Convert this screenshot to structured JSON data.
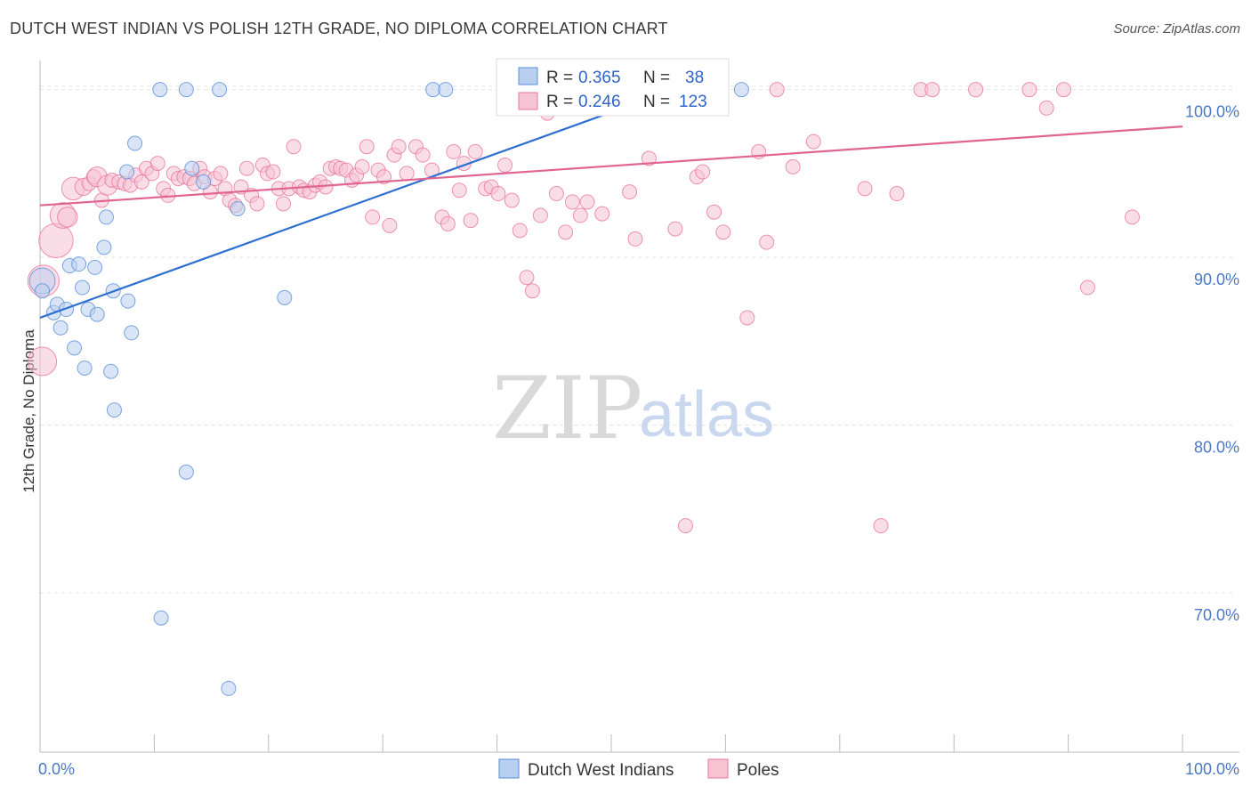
{
  "title": "DUTCH WEST INDIAN VS POLISH 12TH GRADE, NO DIPLOMA CORRELATION CHART",
  "source": "Source: ZipAtlas.com",
  "watermark": {
    "zip": "ZIP",
    "atlas": "atlas"
  },
  "colors": {
    "blue": "#5b8fd8",
    "blue_fill": "#b9cff0",
    "pink": "#e8779c",
    "pink_fill": "#f6c3d3",
    "axis_label": "#4a78c2"
  },
  "chart_data": {
    "type": "scatter",
    "title": "DUTCH WEST INDIAN VS POLISH 12TH GRADE, NO DIPLOMA CORRELATION CHART",
    "xlabel": "",
    "ylabel": "12th Grade, No Diploma",
    "xlim": [
      0,
      100
    ],
    "ylim": [
      60.5,
      102
    ],
    "x_tick_labels": [
      "0.0%",
      "100.0%"
    ],
    "y_ticks": [
      70,
      80,
      90,
      100
    ],
    "y_tick_labels": [
      "70.0%",
      "80.0%",
      "90.0%",
      "100.0%"
    ],
    "grid": true,
    "legend": {
      "placement": "top-center",
      "entries": [
        {
          "r_label": "R =",
          "r_value": "0.365",
          "n_label": "N =",
          "n_value": "38"
        },
        {
          "r_label": "R =",
          "r_value": "0.246",
          "n_label": "N =",
          "n_value": "123"
        }
      ]
    },
    "series": [
      {
        "name": "Dutch West Indians",
        "color": "#5b8fd8",
        "trend": {
          "x": [
            0,
            55.5
          ],
          "y": [
            86.4,
            100.0
          ]
        },
        "points": [
          [
            0.2,
            88.6,
            1.8
          ],
          [
            0.2,
            88.0,
            1.0
          ],
          [
            1.2,
            86.7,
            1.0
          ],
          [
            1.5,
            87.2,
            1.0
          ],
          [
            1.8,
            85.8,
            1.0
          ],
          [
            2.3,
            86.9,
            1.0
          ],
          [
            2.6,
            89.5,
            1.0
          ],
          [
            3.0,
            84.6,
            1.0
          ],
          [
            3.4,
            89.6,
            1.0
          ],
          [
            3.7,
            88.2,
            1.0
          ],
          [
            3.9,
            83.4,
            1.0
          ],
          [
            4.2,
            86.9,
            1.0
          ],
          [
            4.8,
            89.4,
            1.0
          ],
          [
            5.0,
            86.6,
            1.0
          ],
          [
            5.6,
            90.6,
            1.0
          ],
          [
            5.8,
            92.4,
            1.0
          ],
          [
            6.2,
            83.2,
            1.0
          ],
          [
            6.4,
            88.0,
            1.0
          ],
          [
            6.5,
            80.9,
            1.0
          ],
          [
            7.7,
            87.4,
            1.0
          ],
          [
            8.0,
            85.5,
            1.0
          ],
          [
            8.3,
            96.8,
            1.0
          ],
          [
            7.6,
            95.1,
            1.0
          ],
          [
            10.5,
            100.0,
            1.0
          ],
          [
            10.6,
            68.5,
            1.0
          ],
          [
            12.8,
            100.0,
            1.0
          ],
          [
            12.8,
            77.2,
            1.0
          ],
          [
            13.3,
            95.3,
            1.0
          ],
          [
            14.3,
            94.5,
            1.0
          ],
          [
            15.7,
            100.0,
            1.0
          ],
          [
            16.5,
            64.3,
            1.0
          ],
          [
            17.3,
            92.9,
            1.0
          ],
          [
            21.4,
            87.6,
            1.0
          ],
          [
            34.4,
            100.0,
            1.0
          ],
          [
            35.5,
            100.0,
            1.0
          ],
          [
            42.1,
            100.0,
            1.0
          ],
          [
            55.0,
            100.0,
            1.0
          ],
          [
            61.4,
            100.0,
            1.0
          ]
        ]
      },
      {
        "name": "Poles",
        "color": "#e8779c",
        "trend": {
          "x": [
            0,
            100
          ],
          "y": [
            93.1,
            97.8
          ]
        },
        "points": [
          [
            0.2,
            83.8,
            2.0
          ],
          [
            0.3,
            88.6,
            2.2
          ],
          [
            1.4,
            91.0,
            2.4
          ],
          [
            2.0,
            92.5,
            1.8
          ],
          [
            2.4,
            92.4,
            1.4
          ],
          [
            2.9,
            94.1,
            1.6
          ],
          [
            3.8,
            94.2,
            1.2
          ],
          [
            4.3,
            94.4,
            1.0
          ],
          [
            4.7,
            94.8,
            1.0
          ],
          [
            5.0,
            94.8,
            1.4
          ],
          [
            5.4,
            93.4,
            1.0
          ],
          [
            5.9,
            94.3,
            1.4
          ],
          [
            6.3,
            94.6,
            1.0
          ],
          [
            6.9,
            94.5,
            1.0
          ],
          [
            7.4,
            94.4,
            1.0
          ],
          [
            7.9,
            94.3,
            1.0
          ],
          [
            8.4,
            94.9,
            1.0
          ],
          [
            8.9,
            94.5,
            1.0
          ],
          [
            9.3,
            95.3,
            1.0
          ],
          [
            9.8,
            95.0,
            1.0
          ],
          [
            10.3,
            95.6,
            1.0
          ],
          [
            10.8,
            94.1,
            1.0
          ],
          [
            11.2,
            93.7,
            1.0
          ],
          [
            11.7,
            95.0,
            1.0
          ],
          [
            12.1,
            94.7,
            1.0
          ],
          [
            12.6,
            94.8,
            1.0
          ],
          [
            13.1,
            94.7,
            1.0
          ],
          [
            13.5,
            94.4,
            1.0
          ],
          [
            14.0,
            95.3,
            1.0
          ],
          [
            14.4,
            94.8,
            1.0
          ],
          [
            14.9,
            93.9,
            1.0
          ],
          [
            15.3,
            94.7,
            1.0
          ],
          [
            15.8,
            95.0,
            1.0
          ],
          [
            16.2,
            94.1,
            1.0
          ],
          [
            16.6,
            93.4,
            1.0
          ],
          [
            17.1,
            93.1,
            1.0
          ],
          [
            17.6,
            94.2,
            1.0
          ],
          [
            18.1,
            95.3,
            1.0
          ],
          [
            18.5,
            93.7,
            1.0
          ],
          [
            19.0,
            93.2,
            1.0
          ],
          [
            19.5,
            95.5,
            1.0
          ],
          [
            19.9,
            95.0,
            1.0
          ],
          [
            20.4,
            95.1,
            1.0
          ],
          [
            20.9,
            94.1,
            1.0
          ],
          [
            21.3,
            93.2,
            1.0
          ],
          [
            21.8,
            94.1,
            1.0
          ],
          [
            22.2,
            96.6,
            1.0
          ],
          [
            22.7,
            94.2,
            1.0
          ],
          [
            23.1,
            94.0,
            1.0
          ],
          [
            23.6,
            93.9,
            1.0
          ],
          [
            24.1,
            94.3,
            1.0
          ],
          [
            24.5,
            94.5,
            1.0
          ],
          [
            25.0,
            94.2,
            1.0
          ],
          [
            25.4,
            95.3,
            1.0
          ],
          [
            25.9,
            95.4,
            1.0
          ],
          [
            26.3,
            95.3,
            1.0
          ],
          [
            26.8,
            95.2,
            1.0
          ],
          [
            27.3,
            94.6,
            1.0
          ],
          [
            27.7,
            94.9,
            1.0
          ],
          [
            28.2,
            95.4,
            1.0
          ],
          [
            28.6,
            96.6,
            1.0
          ],
          [
            29.1,
            92.4,
            1.0
          ],
          [
            29.6,
            95.2,
            1.0
          ],
          [
            30.1,
            94.8,
            1.0
          ],
          [
            30.6,
            91.9,
            1.0
          ],
          [
            31.0,
            96.1,
            1.0
          ],
          [
            31.4,
            96.6,
            1.0
          ],
          [
            32.1,
            95.0,
            1.0
          ],
          [
            32.9,
            96.6,
            1.0
          ],
          [
            33.5,
            96.1,
            1.0
          ],
          [
            34.3,
            95.2,
            1.0
          ],
          [
            35.2,
            92.4,
            1.0
          ],
          [
            35.7,
            92.0,
            1.0
          ],
          [
            36.2,
            96.3,
            1.0
          ],
          [
            36.7,
            94.0,
            1.0
          ],
          [
            37.1,
            95.6,
            1.0
          ],
          [
            37.7,
            92.2,
            1.0
          ],
          [
            38.1,
            96.3,
            1.0
          ],
          [
            39.0,
            94.1,
            1.0
          ],
          [
            39.5,
            94.2,
            1.0
          ],
          [
            40.1,
            93.8,
            1.0
          ],
          [
            40.7,
            95.5,
            1.0
          ],
          [
            41.3,
            93.4,
            1.0
          ],
          [
            42.0,
            91.6,
            1.0
          ],
          [
            42.6,
            88.8,
            1.0
          ],
          [
            43.1,
            88.0,
            1.0
          ],
          [
            43.8,
            92.5,
            1.0
          ],
          [
            44.4,
            98.6,
            1.0
          ],
          [
            45.2,
            93.8,
            1.0
          ],
          [
            46.0,
            91.5,
            1.0
          ],
          [
            46.6,
            93.3,
            1.0
          ],
          [
            47.3,
            92.5,
            1.0
          ],
          [
            47.9,
            93.3,
            1.0
          ],
          [
            48.5,
            100.0,
            1.0
          ],
          [
            49.2,
            92.6,
            1.0
          ],
          [
            50.3,
            100.0,
            1.0
          ],
          [
            51.6,
            93.9,
            1.0
          ],
          [
            52.1,
            91.1,
            1.0
          ],
          [
            53.3,
            95.9,
            1.0
          ],
          [
            54.8,
            100.0,
            1.0
          ],
          [
            55.6,
            91.7,
            1.0
          ],
          [
            56.5,
            74.0,
            1.0
          ],
          [
            57.5,
            94.8,
            1.0
          ],
          [
            58.0,
            95.1,
            1.0
          ],
          [
            59.0,
            92.7,
            1.0
          ],
          [
            59.8,
            91.5,
            1.0
          ],
          [
            61.9,
            86.4,
            1.0
          ],
          [
            62.9,
            96.3,
            1.0
          ],
          [
            63.6,
            90.9,
            1.0
          ],
          [
            64.5,
            100.0,
            1.0
          ],
          [
            65.9,
            95.4,
            1.0
          ],
          [
            67.7,
            96.9,
            1.0
          ],
          [
            72.2,
            94.1,
            1.0
          ],
          [
            73.6,
            74.0,
            1.0
          ],
          [
            75.0,
            93.8,
            1.0
          ],
          [
            77.1,
            100.0,
            1.0
          ],
          [
            78.1,
            100.0,
            1.0
          ],
          [
            81.9,
            100.0,
            1.0
          ],
          [
            86.6,
            100.0,
            1.0
          ],
          [
            88.1,
            98.9,
            1.0
          ],
          [
            89.6,
            100.0,
            1.0
          ],
          [
            91.7,
            88.2,
            1.0
          ],
          [
            95.6,
            92.4,
            1.0
          ]
        ]
      }
    ]
  }
}
